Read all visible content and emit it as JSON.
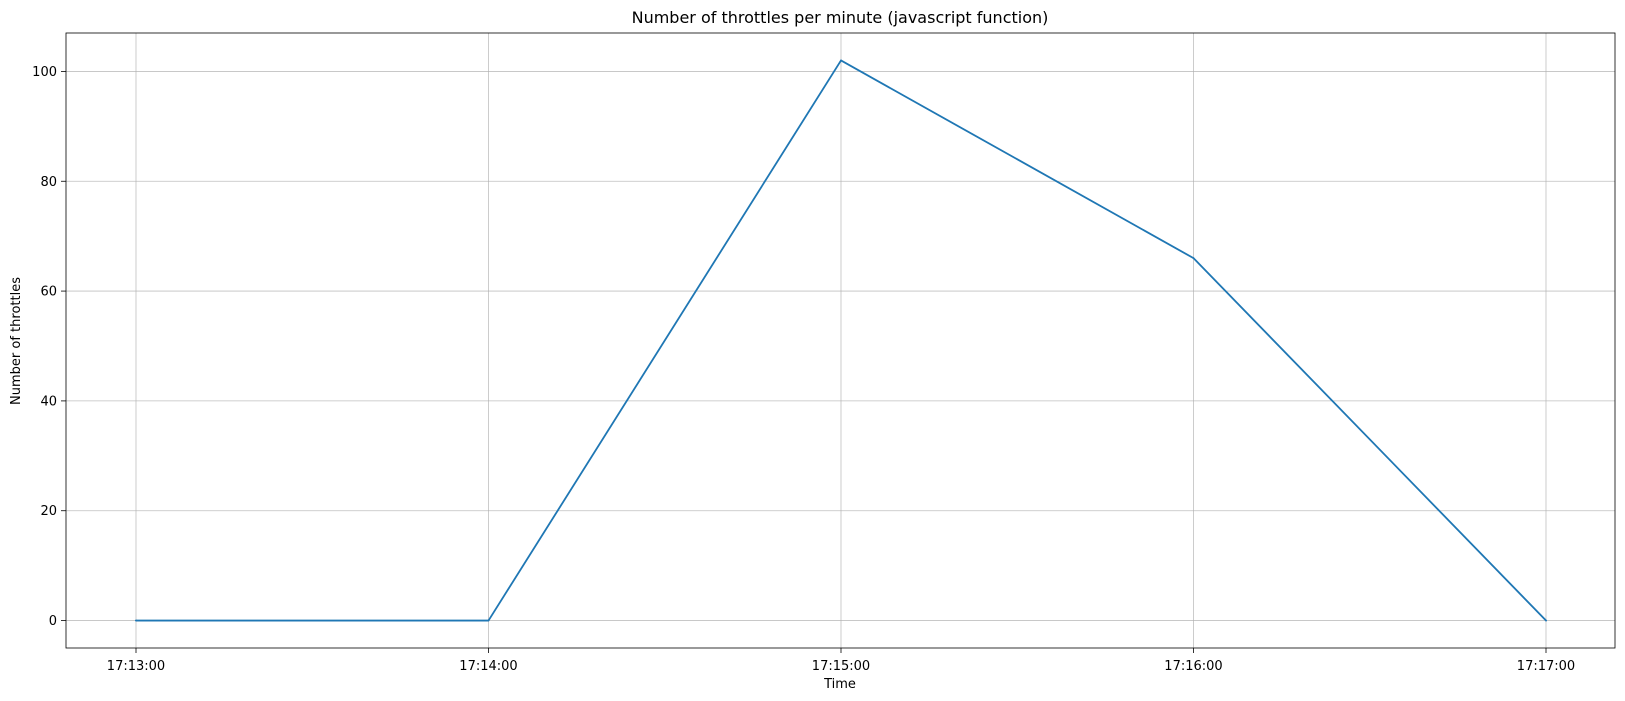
{
  "chart_data": {
    "type": "line",
    "title": "Number of throttles per minute (javascript function)",
    "xlabel": "Time",
    "ylabel": "Number of throttles",
    "x": [
      "17:13:00",
      "17:14:00",
      "17:15:00",
      "17:16:00",
      "17:17:00"
    ],
    "series": [
      {
        "values": [
          0,
          0,
          102,
          66,
          0
        ]
      }
    ],
    "ylim": [
      -5,
      107
    ],
    "yticks": [
      0,
      20,
      40,
      60,
      80,
      100
    ],
    "grid": true,
    "colors": {
      "line": "#1f77b4"
    }
  }
}
